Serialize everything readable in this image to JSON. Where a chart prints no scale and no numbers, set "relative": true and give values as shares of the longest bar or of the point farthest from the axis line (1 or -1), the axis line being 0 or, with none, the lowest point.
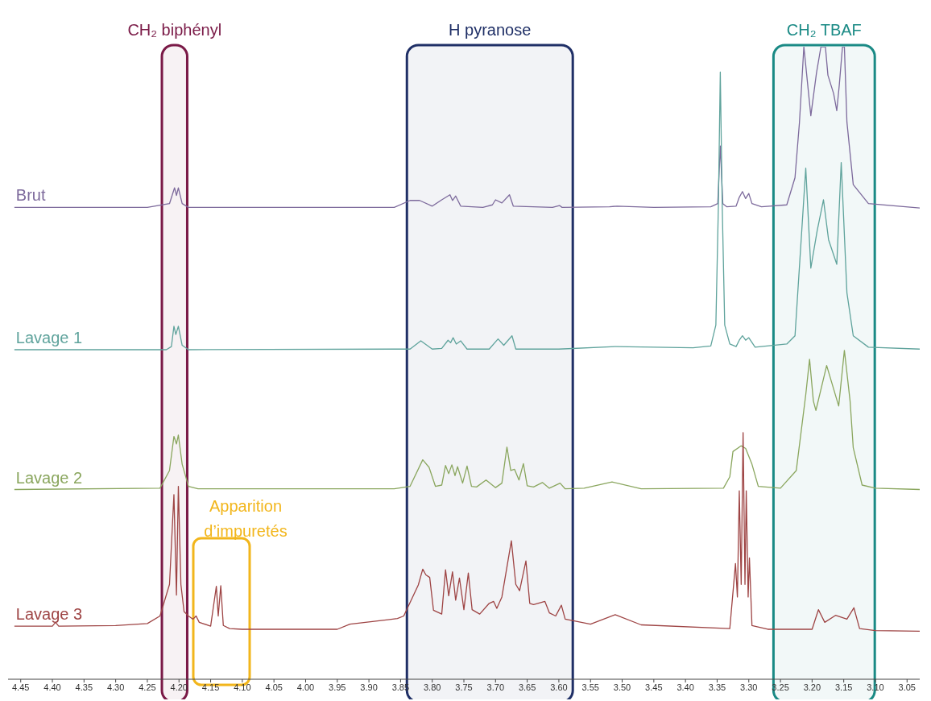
{
  "chart_data": {
    "type": "line",
    "relative": true,
    "xlim": [
      4.47,
      3.03
    ],
    "xticks": [
      {
        "value": 4.45,
        "label": "4.45"
      },
      {
        "value": 4.4,
        "label": "4.40"
      },
      {
        "value": 4.35,
        "label": "4.35"
      },
      {
        "value": 4.3,
        "label": "4.30"
      },
      {
        "value": 4.25,
        "label": "4.25"
      },
      {
        "value": 4.2,
        "label": "4.20"
      },
      {
        "value": 4.15,
        "label": "4.15"
      },
      {
        "value": 4.1,
        "label": "4.10"
      },
      {
        "value": 4.05,
        "label": "4.05"
      },
      {
        "value": 4.0,
        "label": "4.00"
      },
      {
        "value": 3.95,
        "label": "3.95"
      },
      {
        "value": 3.9,
        "label": "3.90"
      },
      {
        "value": 3.85,
        "label": "3.85"
      },
      {
        "value": 3.8,
        "label": "3.80"
      },
      {
        "value": 3.75,
        "label": "3.75"
      },
      {
        "value": 3.7,
        "label": "3.70"
      },
      {
        "value": 3.65,
        "label": "3.65"
      },
      {
        "value": 3.6,
        "label": "3.60"
      },
      {
        "value": 3.55,
        "label": "3.55"
      },
      {
        "value": 3.5,
        "label": "3.50"
      },
      {
        "value": 3.45,
        "label": "3.45"
      },
      {
        "value": 3.4,
        "label": "3.40"
      },
      {
        "value": 3.35,
        "label": "3.35"
      },
      {
        "value": 3.3,
        "label": "3.30"
      },
      {
        "value": 3.25,
        "label": "3.25"
      },
      {
        "value": 3.2,
        "label": "3.20"
      },
      {
        "value": 3.15,
        "label": "3.15"
      },
      {
        "value": 3.1,
        "label": "3.10"
      },
      {
        "value": 3.05,
        "label": "3.05"
      }
    ],
    "series": [
      {
        "name": "Brut",
        "color": "#7d6a9c",
        "x": [
          4.46,
          4.25,
          4.215,
          4.207,
          4.204,
          4.201,
          4.195,
          4.185,
          3.86,
          3.835,
          3.82,
          3.8,
          3.785,
          3.772,
          3.768,
          3.763,
          3.755,
          3.72,
          3.705,
          3.7,
          3.69,
          3.678,
          3.672,
          3.61,
          3.599,
          3.595,
          3.52,
          3.508,
          3.45,
          3.36,
          3.349,
          3.345,
          3.341,
          3.335,
          3.32,
          3.315,
          3.31,
          3.305,
          3.3,
          3.295,
          3.28,
          3.24,
          3.227,
          3.22,
          3.213,
          3.202,
          3.193,
          3.186,
          3.179,
          3.175,
          3.166,
          3.161,
          3.157,
          3.152,
          3.149,
          3.145,
          3.135,
          3.111,
          3.03
        ],
        "values": [
          0.746,
          0.746,
          0.752,
          0.777,
          0.765,
          0.777,
          0.752,
          0.746,
          0.746,
          0.757,
          0.757,
          0.748,
          0.758,
          0.766,
          0.757,
          0.764,
          0.748,
          0.746,
          0.75,
          0.758,
          0.753,
          0.766,
          0.748,
          0.746,
          0.749,
          0.746,
          0.747,
          0.748,
          0.746,
          0.747,
          0.752,
          0.843,
          0.752,
          0.747,
          0.748,
          0.762,
          0.771,
          0.76,
          0.768,
          0.752,
          0.747,
          0.75,
          0.793,
          0.88,
          1,
          0.891,
          0.959,
          1,
          1,
          0.955,
          0.926,
          0.899,
          0.94,
          1,
          1,
          0.881,
          0.782,
          0.752,
          0.745
        ]
      },
      {
        "name": "Lavage 1",
        "color": "#5fa39c",
        "x": [
          4.46,
          4.22,
          4.212,
          4.208,
          4.205,
          4.201,
          4.195,
          4.185,
          3.86,
          3.835,
          3.818,
          3.8,
          3.785,
          3.775,
          3.771,
          3.767,
          3.762,
          3.755,
          3.745,
          3.71,
          3.696,
          3.687,
          3.674,
          3.668,
          3.6,
          3.51,
          3.388,
          3.36,
          3.352,
          3.348,
          3.345,
          3.342,
          3.338,
          3.33,
          3.32,
          3.315,
          3.31,
          3.305,
          3.3,
          3.29,
          3.24,
          3.227,
          3.21,
          3.202,
          3.192,
          3.182,
          3.174,
          3.161,
          3.154,
          3.145,
          3.135,
          3.111,
          3.03
        ],
        "values": [
          0.521,
          0.521,
          0.526,
          0.558,
          0.545,
          0.558,
          0.528,
          0.521,
          0.522,
          0.522,
          0.535,
          0.522,
          0.523,
          0.536,
          0.532,
          0.54,
          0.53,
          0.535,
          0.522,
          0.522,
          0.538,
          0.528,
          0.543,
          0.522,
          0.522,
          0.526,
          0.524,
          0.527,
          0.56,
          0.75,
          0.96,
          0.75,
          0.56,
          0.53,
          0.526,
          0.536,
          0.543,
          0.536,
          0.54,
          0.525,
          0.53,
          0.543,
          0.808,
          0.65,
          0.709,
          0.758,
          0.695,
          0.656,
          0.817,
          0.611,
          0.543,
          0.525,
          0.522
        ]
      },
      {
        "name": "Lavage 2",
        "color": "#8aa65e",
        "x": [
          4.46,
          4.23,
          4.215,
          4.208,
          4.204,
          4.201,
          4.195,
          4.185,
          4.17,
          3.86,
          3.835,
          3.815,
          3.805,
          3.795,
          3.785,
          3.779,
          3.774,
          3.769,
          3.764,
          3.76,
          3.752,
          3.745,
          3.738,
          3.73,
          3.715,
          3.7,
          3.69,
          3.682,
          3.676,
          3.67,
          3.663,
          3.656,
          3.65,
          3.64,
          3.626,
          3.615,
          3.598,
          3.59,
          3.56,
          3.516,
          3.47,
          3.34,
          3.33,
          3.325,
          3.312,
          3.305,
          3.295,
          3.285,
          3.25,
          3.225,
          3.21,
          3.204,
          3.198,
          3.194,
          3.177,
          3.158,
          3.149,
          3.14,
          3.135,
          3.121,
          3.1,
          3.03
        ],
        "values": [
          0.3,
          0.302,
          0.33,
          0.384,
          0.372,
          0.386,
          0.34,
          0.305,
          0.301,
          0.301,
          0.305,
          0.347,
          0.335,
          0.305,
          0.307,
          0.338,
          0.325,
          0.339,
          0.322,
          0.336,
          0.31,
          0.337,
          0.305,
          0.304,
          0.315,
          0.303,
          0.31,
          0.367,
          0.33,
          0.332,
          0.315,
          0.341,
          0.306,
          0.304,
          0.311,
          0.302,
          0.31,
          0.301,
          0.302,
          0.312,
          0.301,
          0.302,
          0.32,
          0.36,
          0.369,
          0.365,
          0.34,
          0.305,
          0.302,
          0.33,
          0.45,
          0.506,
          0.44,
          0.425,
          0.496,
          0.432,
          0.52,
          0.44,
          0.366,
          0.307,
          0.302,
          0.3
        ]
      },
      {
        "name": "Lavage 3",
        "color": "#9e4444",
        "x": [
          4.46,
          4.4,
          4.395,
          4.39,
          4.3,
          4.25,
          4.23,
          4.215,
          4.208,
          4.204,
          4.201,
          4.197,
          4.192,
          4.185,
          4.178,
          4.173,
          4.168,
          4.15,
          4.141,
          4.138,
          4.134,
          4.13,
          4.12,
          4.1,
          3.95,
          3.93,
          3.87,
          3.855,
          3.845,
          3.822,
          3.815,
          3.81,
          3.804,
          3.798,
          3.785,
          3.779,
          3.774,
          3.768,
          3.763,
          3.757,
          3.75,
          3.743,
          3.737,
          3.725,
          3.71,
          3.703,
          3.698,
          3.69,
          3.675,
          3.668,
          3.662,
          3.652,
          3.646,
          3.64,
          3.622,
          3.615,
          3.605,
          3.596,
          3.59,
          3.55,
          3.511,
          3.47,
          3.33,
          3.321,
          3.318,
          3.315,
          3.312,
          3.309,
          3.306,
          3.304,
          3.301,
          3.299,
          3.295,
          3.27,
          3.2,
          3.19,
          3.18,
          3.163,
          3.145,
          3.134,
          3.125,
          3.1,
          3.03
        ],
        "values": [
          0.084,
          0.084,
          0.09,
          0.084,
          0.085,
          0.088,
          0.1,
          0.15,
          0.292,
          0.133,
          0.305,
          0.15,
          0.107,
          0.1,
          0.095,
          0.1,
          0.09,
          0.084,
          0.147,
          0.1,
          0.148,
          0.085,
          0.08,
          0.079,
          0.079,
          0.087,
          0.094,
          0.096,
          0.1,
          0.149,
          0.174,
          0.165,
          0.161,
          0.109,
          0.103,
          0.173,
          0.132,
          0.17,
          0.125,
          0.16,
          0.11,
          0.168,
          0.11,
          0.103,
          0.12,
          0.123,
          0.112,
          0.13,
          0.219,
          0.15,
          0.14,
          0.187,
          0.12,
          0.118,
          0.123,
          0.105,
          0.1,
          0.117,
          0.095,
          0.087,
          0.102,
          0.086,
          0.08,
          0.183,
          0.13,
          0.298,
          0.15,
          0.39,
          0.15,
          0.298,
          0.13,
          0.192,
          0.085,
          0.079,
          0.079,
          0.11,
          0.09,
          0.101,
          0.095,
          0.113,
          0.08,
          0.077,
          0.076
        ]
      }
    ],
    "bands": [
      {
        "axis": "x",
        "from": 4.227,
        "to": 4.187,
        "label": "CH₂ biphényl",
        "color": "#7a1a47"
      },
      {
        "axis": "x",
        "from": 3.84,
        "to": 3.578,
        "label": "H pyranose",
        "color": "#1f2f66"
      },
      {
        "axis": "x",
        "from": 3.261,
        "to": 3.101,
        "label": "CH₂ TBAF",
        "color": "#1a8a85"
      }
    ],
    "annotations": [
      "Apparition d’impuretés"
    ]
  }
}
